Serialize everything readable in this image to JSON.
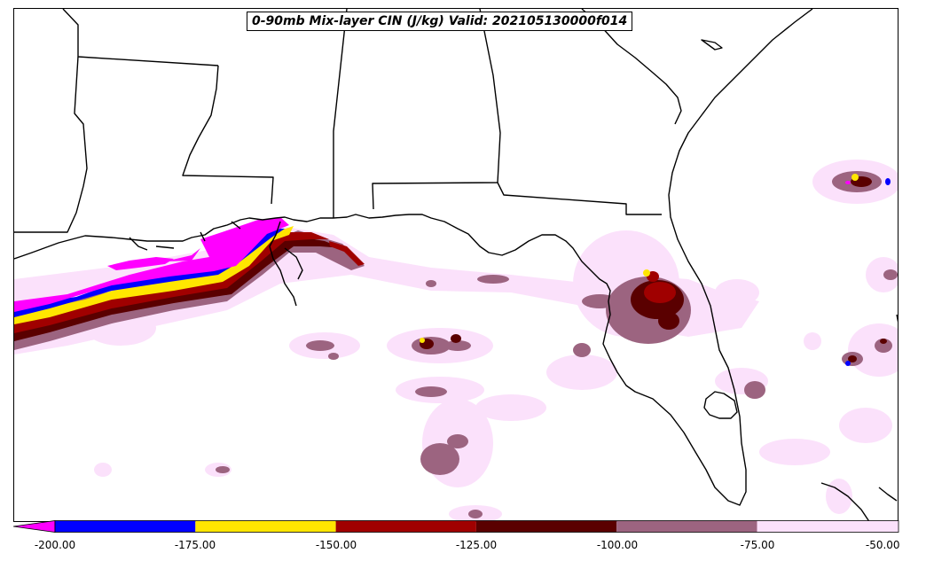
{
  "title": "0-90mb Mix-layer CIN (J/kg) Valid: 202105130000f014",
  "colorbar": {
    "extend": "min",
    "under_color": "#ff00ff",
    "bins": [
      {
        "from": -200,
        "to": -175,
        "color": "#0000ff"
      },
      {
        "from": -175,
        "to": -150,
        "color": "#ffe600"
      },
      {
        "from": -150,
        "to": -125,
        "color": "#a00000"
      },
      {
        "from": -125,
        "to": -100,
        "color": "#5a0000"
      },
      {
        "from": -100,
        "to": -75,
        "color": "#9c6480"
      },
      {
        "from": -75,
        "to": -50,
        "color": "#fbe1fb"
      }
    ],
    "tick_labels": [
      "-200.00",
      "-175.00",
      "-150.00",
      "-125.00",
      "-100.00",
      "-75.00",
      "-50.00"
    ]
  }
}
